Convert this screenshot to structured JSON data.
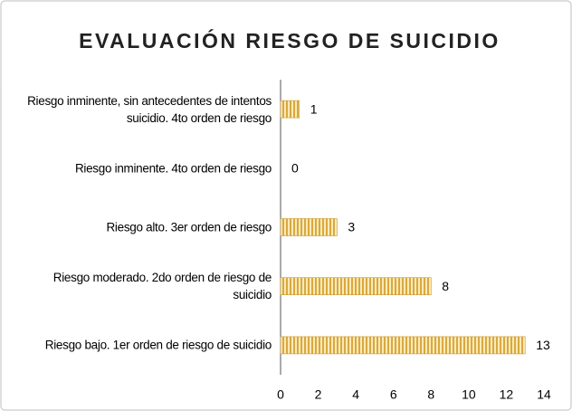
{
  "chart_data": {
    "type": "bar",
    "orientation": "horizontal",
    "title": "EVALUACIÓN RIESGO DE SUICIDIO",
    "categories": [
      "Riesgo inminente, sin antecedentes de intentos suicidio. 4to orden de riesgo",
      "Riesgo inminente. 4to orden de riesgo",
      "Riesgo alto. 3er orden de riesgo",
      "Riesgo moderado. 2do orden de riesgo de suicidio",
      "Riesgo bajo. 1er orden de riesgo de suicidio"
    ],
    "values": [
      1,
      0,
      3,
      8,
      13
    ],
    "color": "#d9a93f",
    "xlim": [
      0,
      14
    ],
    "xticks": [
      0,
      2,
      4,
      6,
      8,
      10,
      12,
      14
    ],
    "grid": false,
    "data_labels": true
  }
}
